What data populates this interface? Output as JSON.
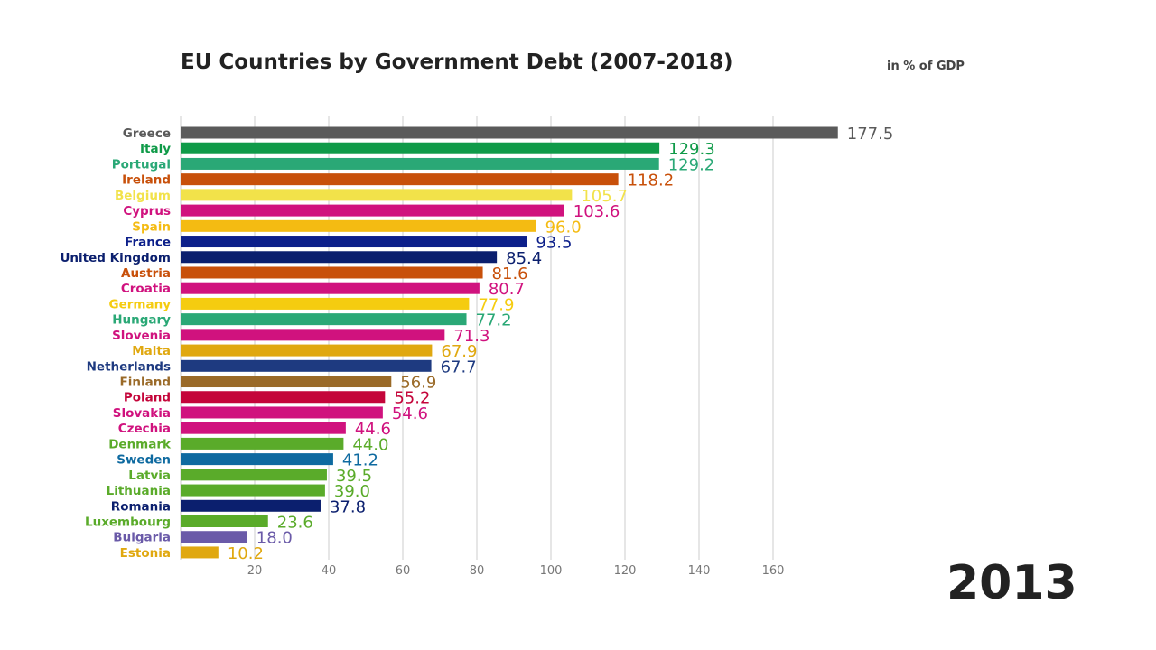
{
  "chart_data": {
    "type": "bar",
    "orientation": "horizontal",
    "title": "EU Countries by Government Debt (2007-2018)",
    "unit_label": "in % of GDP",
    "year": "2013",
    "xlim": [
      0,
      180
    ],
    "xticks": [
      20,
      40,
      60,
      80,
      100,
      120,
      140,
      160
    ],
    "grid": true,
    "categories": [
      "Greece",
      "Italy",
      "Portugal",
      "Ireland",
      "Belgium",
      "Cyprus",
      "Spain",
      "France",
      "United Kingdom",
      "Austria",
      "Croatia",
      "Germany",
      "Hungary",
      "Slovenia",
      "Malta",
      "Netherlands",
      "Finland",
      "Poland",
      "Slovakia",
      "Czechia",
      "Denmark",
      "Sweden",
      "Latvia",
      "Lithuania",
      "Romania",
      "Luxembourg",
      "Bulgaria",
      "Estonia"
    ],
    "values": [
      177.5,
      129.3,
      129.2,
      118.2,
      105.7,
      103.6,
      96.0,
      93.5,
      85.4,
      81.6,
      80.7,
      77.9,
      77.2,
      71.3,
      67.9,
      67.7,
      56.9,
      55.2,
      54.6,
      44.6,
      44.0,
      41.2,
      39.5,
      39.0,
      37.8,
      23.6,
      18.0,
      10.2
    ],
    "labels": [
      "177.5",
      "129.3",
      "129.2",
      "118.2",
      "105.7",
      "103.6",
      "96.0",
      "93.5",
      "85.4",
      "81.6",
      "80.7",
      "77.9",
      "77.2",
      "71.3",
      "67.9",
      "67.7",
      "56.9",
      "55.2",
      "54.6",
      "44.6",
      "44.0",
      "41.2",
      "39.5",
      "39.0",
      "37.8",
      "23.6",
      "18.0",
      "10.2"
    ],
    "colors": [
      "#5a5a5a",
      "#0f9a48",
      "#2aa876",
      "#c8500a",
      "#f2e24a",
      "#d0127e",
      "#f4bb12",
      "#0c1f8a",
      "#0b1f6e",
      "#c8500a",
      "#d0127e",
      "#f5cc10",
      "#2aa876",
      "#d0127e",
      "#e0a810",
      "#1e3a80",
      "#9a6a28",
      "#c4053a",
      "#d0127e",
      "#d0127e",
      "#5aab2a",
      "#0e6aa0",
      "#5aab2a",
      "#5aab2a",
      "#0b1f6e",
      "#5aab2a",
      "#6a5aa8",
      "#e0a810"
    ]
  }
}
